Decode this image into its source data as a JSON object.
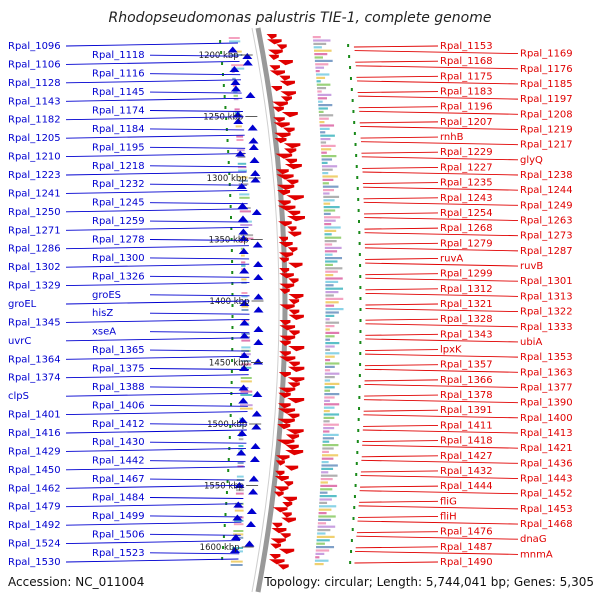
{
  "title": "Rhodopseudomonas palustris TIE-1, complete genome",
  "accession": "Accession: NC_011004",
  "summary": "Topology: circular; Length: 5,744,041 bp; Genes: 5,305",
  "colors": {
    "plus_strand": "#e00000",
    "minus_strand": "#0000d0",
    "backbone": "#999999",
    "scale_ticks": "#1a8a1a"
  },
  "scale_marks": [
    "1200 kbp",
    "1250 kbp",
    "1300 kbp",
    "1350 kbp",
    "1400 kbp",
    "1450 kbp",
    "1500 kbp",
    "1550 kbp",
    "1600 kbp"
  ],
  "left_labels": [
    "Rpal_1096",
    "Rpal_1118",
    "Rpal_1106",
    "Rpal_1116",
    "Rpal_1128",
    "Rpal_1145",
    "Rpal_1143",
    "Rpal_1174",
    "Rpal_1182",
    "Rpal_1184",
    "Rpal_1205",
    "Rpal_1195",
    "Rpal_1210",
    "Rpal_1218",
    "Rpal_1223",
    "Rpal_1232",
    "Rpal_1241",
    "Rpal_1245",
    "Rpal_1250",
    "Rpal_1259",
    "Rpal_1271",
    "Rpal_1278",
    "Rpal_1286",
    "Rpal_1300",
    "Rpal_1302",
    "Rpal_1326",
    "Rpal_1329",
    "groES",
    "groEL",
    "hisZ",
    "Rpal_1345",
    "xseA",
    "uvrC",
    "Rpal_1365",
    "Rpal_1364",
    "Rpal_1375",
    "Rpal_1374",
    "Rpal_1388",
    "clpS",
    "Rpal_1406",
    "Rpal_1401",
    "Rpal_1412",
    "Rpal_1416",
    "Rpal_1430",
    "Rpal_1429",
    "Rpal_1442",
    "Rpal_1450",
    "Rpal_1467",
    "Rpal_1462",
    "Rpal_1484",
    "Rpal_1479",
    "Rpal_1499",
    "Rpal_1492",
    "Rpal_1506",
    "Rpal_1524",
    "Rpal_1523",
    "Rpal_1530"
  ],
  "right_labels": [
    "Rpal_1153",
    "Rpal_1169",
    "Rpal_1168",
    "Rpal_1176",
    "Rpal_1175",
    "Rpal_1185",
    "Rpal_1183",
    "Rpal_1197",
    "Rpal_1196",
    "Rpal_1208",
    "Rpal_1207",
    "Rpal_1219",
    "rnhB",
    "Rpal_1217",
    "Rpal_1229",
    "glyQ",
    "Rpal_1227",
    "Rpal_1238",
    "Rpal_1235",
    "Rpal_1244",
    "Rpal_1243",
    "Rpal_1249",
    "Rpal_1254",
    "Rpal_1263",
    "Rpal_1268",
    "Rpal_1273",
    "Rpal_1279",
    "Rpal_1287",
    "ruvA",
    "ruvB",
    "Rpal_1299",
    "Rpal_1301",
    "Rpal_1312",
    "Rpal_1313",
    "Rpal_1321",
    "Rpal_1322",
    "Rpal_1328",
    "Rpal_1333",
    "Rpal_1343",
    "ubiA",
    "lpxK",
    "Rpal_1353",
    "Rpal_1357",
    "Rpal_1363",
    "Rpal_1366",
    "Rpal_1377",
    "Rpal_1378",
    "Rpal_1390",
    "Rpal_1391",
    "Rpal_1400",
    "Rpal_1411",
    "Rpal_1413",
    "Rpal_1418",
    "Rpal_1421",
    "Rpal_1427",
    "Rpal_1436",
    "Rpal_1432",
    "Rpal_1443",
    "Rpal_1444",
    "Rpal_1452",
    "fliG",
    "Rpal_1453",
    "fliH",
    "Rpal_1468",
    "Rpal_1476",
    "dnaG",
    "Rpal_1487",
    "mnmA",
    "Rpal_1490"
  ]
}
